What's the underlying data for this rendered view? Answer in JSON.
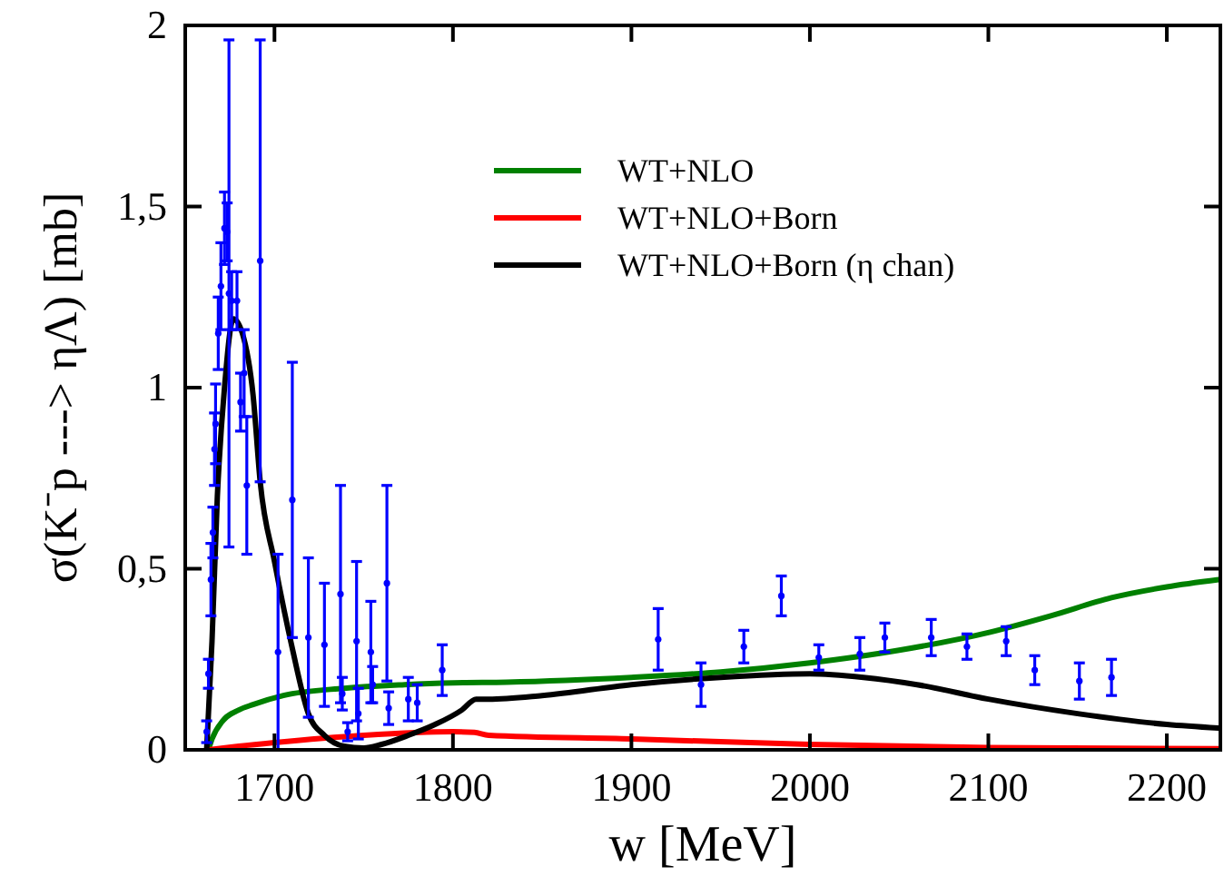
{
  "chart_data": {
    "type": "line",
    "xlabel": "w [MeV]",
    "ylabel": "σ(K⁻p ---> ηΛ) [mb]",
    "xlim": [
      1650,
      2230
    ],
    "xticks": [
      1700,
      1800,
      1900,
      2000,
      2100,
      2200
    ],
    "ylim": [
      0,
      2
    ],
    "yticks": [
      0,
      {
        "value": 0.5,
        "label": "0,5"
      },
      1,
      {
        "value": 1.5,
        "label": "1,5"
      },
      2
    ],
    "grid": false,
    "legend": "top right",
    "line_style": "solid",
    "series": [
      {
        "name": "WT+NLO",
        "color": "#008000",
        "x": [
          1663,
          1665,
          1671,
          1680,
          1688,
          1705,
          1739,
          1773,
          1800,
          1830,
          1900,
          1950,
          2000,
          2050,
          2101,
          2135,
          2169,
          2200,
          2229
        ],
        "values": [
          0,
          0.03,
          0.08,
          0.11,
          0.125,
          0.15,
          0.17,
          0.18,
          0.185,
          0.187,
          0.2,
          0.215,
          0.24,
          0.275,
          0.325,
          0.37,
          0.42,
          0.45,
          0.47
        ]
      },
      {
        "name": "WT+NLO+Born",
        "color": "#ff0000",
        "x": [
          1663,
          1680,
          1700,
          1750,
          1800,
          1812,
          1820,
          1900,
          2000,
          2100,
          2229
        ],
        "values": [
          0,
          0.01,
          0.02,
          0.04,
          0.05,
          0.048,
          0.04,
          0.03,
          0.015,
          0.006,
          0.003
        ]
      },
      {
        "name": "WT+NLO+Born (η chan)",
        "color": "#000000",
        "x": [
          1662,
          1665,
          1668,
          1672,
          1677,
          1682,
          1688,
          1692,
          1700,
          1710,
          1719,
          1728,
          1739,
          1750,
          1760,
          1775,
          1790,
          1805,
          1813,
          1820,
          1850,
          1900,
          1950,
          2000,
          2030,
          2060,
          2100,
          2150,
          2200,
          2229
        ],
        "values": [
          0,
          0.3,
          0.7,
          1.0,
          1.19,
          1.15,
          0.98,
          0.74,
          0.52,
          0.28,
          0.1,
          0.04,
          0.01,
          0.005,
          0.015,
          0.04,
          0.07,
          0.11,
          0.14,
          0.14,
          0.15,
          0.18,
          0.2,
          0.21,
          0.2,
          0.18,
          0.14,
          0.1,
          0.07,
          0.06
        ]
      },
      {
        "type": "scatter",
        "marker": "circle",
        "color": "#0000ff",
        "x": [
          1662,
          1663,
          1664.4,
          1665.5,
          1666.4,
          1667,
          1668.5,
          1670,
          1672,
          1673.5,
          1674.5,
          1676,
          1679,
          1681,
          1683,
          1684.5,
          1692,
          1702,
          1710,
          1719,
          1728,
          1737,
          1738,
          1741,
          1746,
          1747,
          1754,
          1755,
          1763,
          1764,
          1775,
          1780,
          1794,
          1915,
          1939,
          1963,
          1984,
          2005,
          2028,
          2042,
          2068,
          2088,
          2110,
          2126,
          2151,
          2169
        ],
        "values": [
          0.05,
          0.21,
          0.47,
          0.6,
          0.83,
          0.9,
          1.15,
          1.28,
          1.44,
          1.43,
          1.26,
          1.24,
          1.24,
          0.96,
          1.04,
          0.73,
          1.35,
          0.27,
          0.69,
          0.31,
          0.29,
          0.43,
          0.155,
          0.05,
          0.3,
          0.1,
          0.27,
          0.18,
          0.46,
          0.115,
          0.14,
          0.13,
          0.22,
          0.305,
          0.18,
          0.285,
          0.425,
          0.255,
          0.265,
          0.31,
          0.31,
          0.285,
          0.3,
          0.22,
          0.19,
          0.2
        ],
        "errors": [
          0.03,
          0.04,
          0.1,
          0.07,
          0.1,
          0.11,
          0.1,
          0.12,
          0.1,
          0.08,
          0.7,
          0.08,
          0.08,
          0.08,
          0.12,
          0.19,
          0.61,
          0.27,
          0.38,
          0.22,
          0.17,
          0.3,
          0.045,
          0.025,
          0.22,
          0.07,
          0.14,
          0.05,
          0.27,
          0.045,
          0.06,
          0.05,
          0.07,
          0.085,
          0.06,
          0.045,
          0.055,
          0.035,
          0.045,
          0.04,
          0.05,
          0.035,
          0.04,
          0.04,
          0.05,
          0.05
        ]
      }
    ]
  }
}
